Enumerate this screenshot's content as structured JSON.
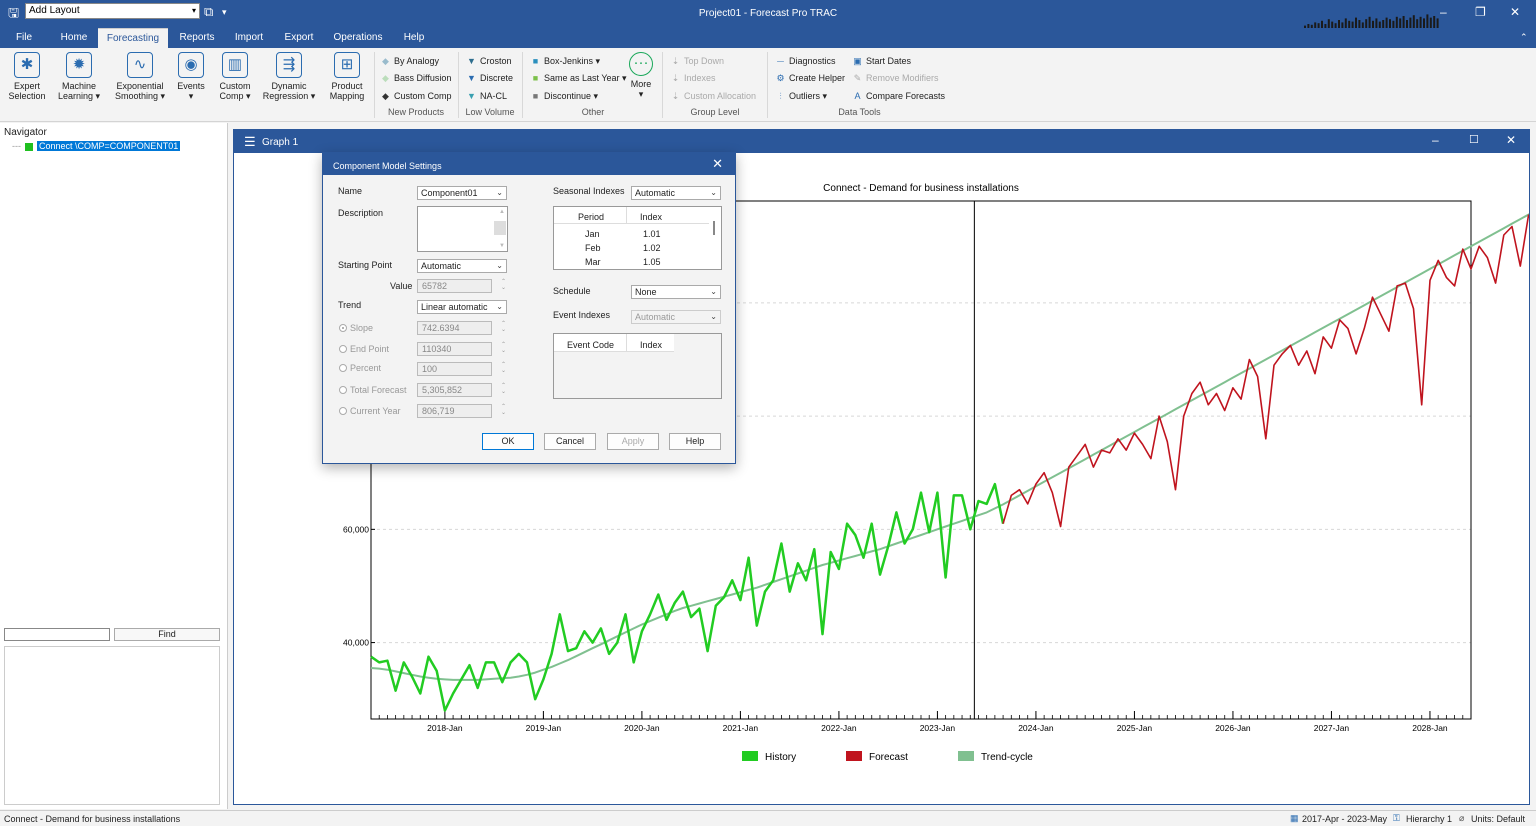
{
  "title_bar": {
    "layout_select": "Add Layout",
    "app_title": "Project01 - Forecast Pro TRAC"
  },
  "tabs": [
    "File",
    "Home",
    "Forecasting",
    "Reports",
    "Import",
    "Export",
    "Operations",
    "Help"
  ],
  "active_tab": "Forecasting",
  "ribbon": {
    "big_buttons": [
      {
        "label1": "Expert",
        "label2": "Selection",
        "icon": "expert-selection-icon",
        "glyph": "✱"
      },
      {
        "label1": "Machine",
        "label2": "Learning ▾",
        "icon": "machine-learning-icon",
        "glyph": "✹"
      },
      {
        "label1": "Exponential",
        "label2": "Smoothing ▾",
        "icon": "exponential-smoothing-icon",
        "glyph": "∿"
      },
      {
        "label1": "Events",
        "label2": "▾",
        "icon": "events-icon",
        "glyph": "◉"
      },
      {
        "label1": "Custom",
        "label2": "Comp ▾",
        "icon": "custom-comp-icon",
        "glyph": "▥"
      },
      {
        "label1": "Dynamic",
        "label2": "Regression ▾",
        "icon": "dynamic-regression-icon",
        "glyph": "⇶"
      },
      {
        "label1": "Product",
        "label2": "Mapping",
        "icon": "product-mapping-icon",
        "glyph": "⊞"
      }
    ],
    "new_products": {
      "items": [
        "By Analogy",
        "Bass Diffusion",
        "Custom Comp"
      ],
      "group": "New Products"
    },
    "low_volume": {
      "items": [
        "Croston",
        "Discrete",
        "NA-CL"
      ],
      "group": "Low Volume"
    },
    "other": {
      "items": [
        "Box-Jenkins ▾",
        "Same as Last Year ▾",
        "Discontinue ▾"
      ],
      "more": "More",
      "more_sub": "▾",
      "group": "Other"
    },
    "group_level": {
      "items": [
        "Top Down",
        "Indexes",
        "Custom Allocation"
      ],
      "group": "Group Level"
    },
    "data_tools": {
      "col1": [
        "Diagnostics",
        "Create Helper",
        "Outliers ▾"
      ],
      "col2": [
        "Start Dates",
        "Remove Modifiers",
        "Compare Forecasts"
      ],
      "group": "Data Tools"
    }
  },
  "navigator": {
    "title": "Navigator",
    "item": "Connect \\COMP=COMPONENT01",
    "find_label": "Find"
  },
  "graph_window": {
    "title": "Graph 1"
  },
  "dialog": {
    "title": "Component Model Settings",
    "name_label": "Name",
    "name_value": "Component01",
    "description_label": "Description",
    "starting_point_label": "Starting Point",
    "starting_point_value": "Automatic",
    "value_label": "Value",
    "value_value": "65782",
    "trend_label": "Trend",
    "trend_value": "Linear automatic",
    "options": [
      {
        "label": "Slope",
        "value": "742.6394",
        "selected": true
      },
      {
        "label": "End Point",
        "value": "110340",
        "selected": false
      },
      {
        "label": "Percent",
        "value": "100",
        "selected": false
      },
      {
        "label": "Total Forecast",
        "value": "5,305,852",
        "selected": false
      },
      {
        "label": "Current Year",
        "value": "806,719",
        "selected": false
      }
    ],
    "seasonal_label": "Seasonal Indexes",
    "seasonal_value": "Automatic",
    "season_table": {
      "headers": [
        "Period",
        "Index"
      ],
      "rows": [
        [
          "Jan",
          "1.01"
        ],
        [
          "Feb",
          "1.02"
        ],
        [
          "Mar",
          "1.05"
        ]
      ]
    },
    "schedule_label": "Schedule",
    "schedule_value": "None",
    "event_indexes_label": "Event Indexes",
    "event_indexes_value": "Automatic",
    "event_table": {
      "headers": [
        "Event Code",
        "Index"
      ]
    },
    "buttons": {
      "ok": "OK",
      "cancel": "Cancel",
      "apply": "Apply",
      "help": "Help"
    }
  },
  "status": {
    "left": "Connect - Demand for business installations",
    "range": "2017-Apr - 2023-May",
    "hierarchy": "Hierarchy 1",
    "units": "Units: Default"
  },
  "chart_data": {
    "type": "line",
    "title": "Connect - Demand for business installations",
    "x_start": "2017-Apr",
    "x_ticks": [
      "2018-Jan",
      "2019-Jan",
      "2020-Jan",
      "2021-Jan",
      "2022-Jan",
      "2023-Jan",
      "2024-Jan",
      "2025-Jan",
      "2026-Jan",
      "2027-Jan",
      "2028-Jan"
    ],
    "y_ticks": [
      "40,000",
      "60,000"
    ],
    "y_tick_values": [
      40000,
      60000
    ],
    "ylim": [
      26500,
      118000
    ],
    "forecast_start": "2023-Jun",
    "colors": {
      "history": "#22cc22",
      "forecast": "#c0141e",
      "trend": "#80c090"
    },
    "series": [
      {
        "name": "History",
        "values": [
          37500,
          36500,
          36800,
          31500,
          36500,
          34000,
          31000,
          37500,
          35000,
          28000,
          31000,
          33500,
          36000,
          32000,
          36500,
          36500,
          33000,
          36500,
          38000,
          36500,
          30000,
          33500,
          38000,
          45000,
          38500,
          39000,
          42000,
          40000,
          42500,
          38000,
          40000,
          45000,
          36500,
          42000,
          45000,
          48500,
          44000,
          47000,
          49000,
          44500,
          46000,
          38500,
          46500,
          48000,
          51000,
          47500,
          55000,
          43000,
          49000,
          51000,
          57500,
          49000,
          54000,
          51000,
          56500,
          41500,
          56000,
          53000,
          61000,
          59000,
          55000,
          61000,
          52000,
          57000,
          63000,
          57500,
          60000,
          66500,
          59500,
          66500,
          51500,
          66000,
          66000,
          60000,
          65000,
          64500,
          68000,
          61000
        ]
      },
      {
        "name": "Forecast",
        "values": [
          66000,
          67000,
          64500,
          68000,
          70000,
          66500,
          60500,
          71000,
          73000,
          75000,
          71000,
          74000,
          73500,
          76000,
          74000,
          77000,
          75000,
          72500,
          80000,
          75500,
          67000,
          80000,
          84000,
          86000,
          82000,
          84000,
          81000,
          85000,
          83000,
          90000,
          87000,
          76000,
          89000,
          91000,
          92500,
          89000,
          91500,
          87500,
          94000,
          92000,
          97000,
          95500,
          91000,
          95500,
          101000,
          98000,
          95000,
          103000,
          103500,
          99000,
          82000,
          104000,
          107500,
          104500,
          103000,
          109500,
          106000,
          110000,
          108000,
          103500,
          112000,
          113500,
          106500,
          115500,
          112500,
          103000,
          111000,
          113500,
          91000,
          115000,
          117000,
          112000,
          110000,
          112500,
          115500,
          117000,
          120000,
          117000,
          117000
        ]
      },
      {
        "name": "Trend-cycle",
        "values": [
          35500,
          35400,
          35200,
          34900,
          34600,
          34300,
          34000,
          33800,
          33600,
          33500,
          33400,
          33400,
          33400,
          33400,
          33500,
          33600,
          33700,
          33800,
          34000,
          34300,
          34700,
          35200,
          35700,
          36300,
          36900,
          37600,
          38300,
          39000,
          39700,
          40400,
          41100,
          41800,
          42500,
          43200,
          43800,
          44400,
          45000,
          45600,
          46100,
          46500,
          46900,
          47300,
          47700,
          48100,
          48500,
          48900,
          49300,
          49700,
          50200,
          50700,
          51200,
          51700,
          52200,
          52700,
          53200,
          53700,
          54100,
          54500,
          54900,
          55300,
          55700,
          56100,
          56500,
          57000,
          57500,
          58000,
          58500,
          59000,
          59500,
          60000,
          60500,
          61000,
          61500,
          62000,
          62500,
          63000,
          63700,
          64400,
          65200,
          66000,
          66800,
          67600,
          68400,
          69200,
          70000,
          70800,
          71600,
          72400,
          73200,
          74000,
          74800,
          75600,
          76400,
          77200,
          78000,
          78800,
          79600,
          80400,
          81200,
          82000,
          82800,
          83600,
          84400,
          85200,
          86000,
          86800,
          87600,
          88400,
          89200,
          90000,
          90800,
          91600,
          92400,
          93200,
          94000,
          94800,
          95600,
          96400,
          97200,
          98000,
          98800,
          99600,
          100400,
          101200,
          102000,
          102800,
          103600,
          104400,
          105200,
          106000,
          106800,
          107600,
          108400,
          109200,
          110000,
          110800,
          111600,
          112400,
          113200,
          114000,
          114800,
          115600,
          116400,
          117200,
          118000
        ]
      }
    ],
    "legend": [
      "History",
      "Forecast",
      "Trend-cycle"
    ],
    "legend_position": "bottom"
  }
}
